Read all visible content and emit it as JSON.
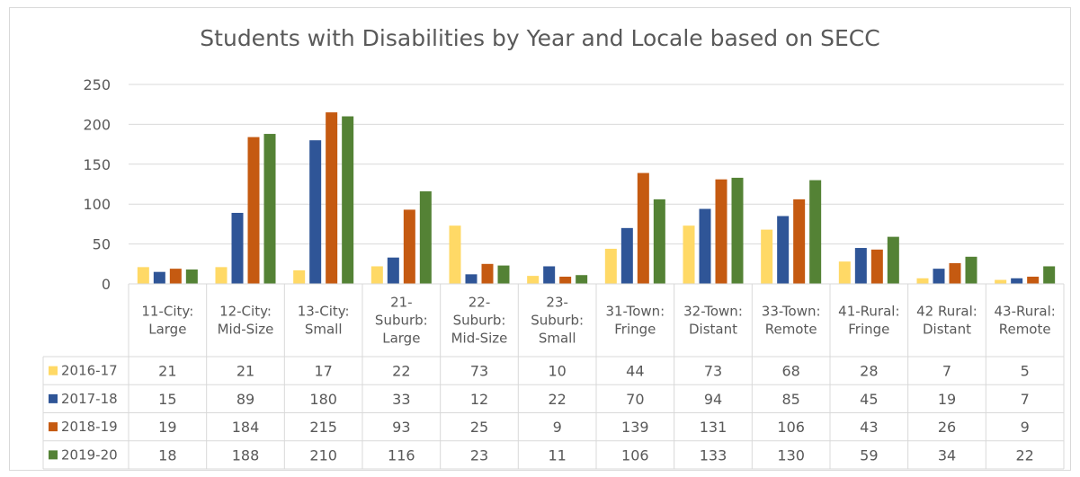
{
  "chart_data": {
    "type": "bar",
    "title": "Students with Disabilities by Year and Locale based on SECC",
    "xlabel": "",
    "ylabel": "",
    "ylim": [
      0,
      250
    ],
    "yticks": [
      0,
      50,
      100,
      150,
      200,
      250
    ],
    "grid": true,
    "legend": "data-table-left",
    "categories": [
      [
        "11-City:",
        "Large"
      ],
      [
        "12-City:",
        "Mid-Size"
      ],
      [
        "13-City:",
        "Small"
      ],
      [
        "21-",
        "Suburb:",
        "Large"
      ],
      [
        "22-",
        "Suburb:",
        "Mid-Size"
      ],
      [
        "23-",
        "Suburb:",
        "Small"
      ],
      [
        "31-Town:",
        "Fringe"
      ],
      [
        "32-Town:",
        "Distant"
      ],
      [
        "33-Town:",
        "Remote"
      ],
      [
        "41-Rural:",
        "Fringe"
      ],
      [
        "42 Rural:",
        "Distant"
      ],
      [
        "43-Rural:",
        "Remote"
      ]
    ],
    "series": [
      {
        "name": "2016-17",
        "color": "#ffd966",
        "values": [
          21,
          21,
          17,
          22,
          73,
          10,
          44,
          73,
          68,
          28,
          7,
          5
        ]
      },
      {
        "name": "2017-18",
        "color": "#2f5597",
        "values": [
          15,
          89,
          180,
          33,
          12,
          22,
          70,
          94,
          85,
          45,
          19,
          7
        ]
      },
      {
        "name": "2018-19",
        "color": "#c55a11",
        "values": [
          19,
          184,
          215,
          93,
          25,
          9,
          139,
          131,
          106,
          43,
          26,
          9
        ]
      },
      {
        "name": "2019-20",
        "color": "#548235",
        "values": [
          18,
          188,
          210,
          116,
          23,
          11,
          106,
          133,
          130,
          59,
          34,
          22
        ]
      }
    ]
  }
}
